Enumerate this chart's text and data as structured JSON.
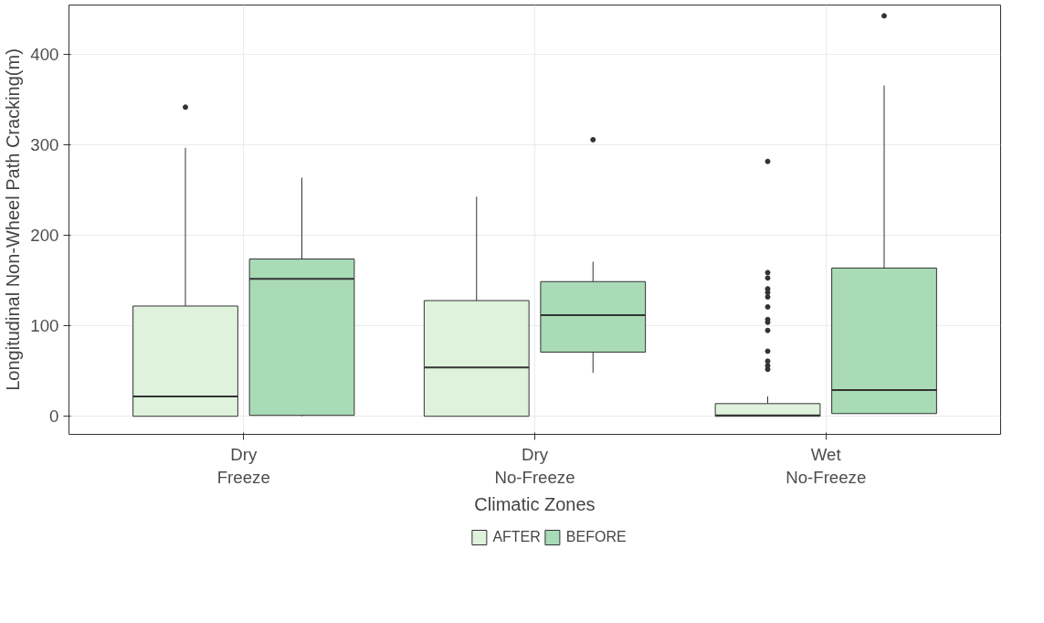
{
  "chart_data": {
    "type": "box",
    "xlabel": "Climatic Zones",
    "ylabel": "Longitudinal Non-Wheel Path Cracking(m)",
    "categories": [
      "Dry\nFreeze",
      "Dry\nNo-Freeze",
      "Wet\nNo-Freeze"
    ],
    "ylim": [
      -20,
      455
    ],
    "yticks": [
      0,
      100,
      200,
      300,
      400
    ],
    "grid": true,
    "legend": "bottom",
    "series": [
      {
        "name": "AFTER",
        "color": "#dff2dc",
        "boxes": [
          {
            "low": 0,
            "q1": 0,
            "median": 22,
            "q3": 122,
            "high": 297,
            "outliers": [
              342
            ]
          },
          {
            "low": 0,
            "q1": 0,
            "median": 54,
            "q3": 128,
            "high": 243
          },
          {
            "low": 0,
            "q1": 0,
            "median": 1,
            "q3": 14,
            "high": 22,
            "outliers": [
              282,
              159,
              153,
              141,
              137,
              132,
              121,
              107,
              104,
              95,
              72,
              61,
              56,
              52
            ]
          }
        ]
      },
      {
        "name": "BEFORE",
        "color": "#a8dbb6",
        "boxes": [
          {
            "low": 0,
            "q1": 1,
            "median": 152,
            "q3": 174,
            "high": 264
          },
          {
            "low": 48,
            "q1": 71,
            "median": 112,
            "q3": 149,
            "high": 171,
            "outliers": [
              306
            ]
          },
          {
            "low": 3,
            "q1": 3,
            "median": 29,
            "q3": 164,
            "high": 366,
            "outliers": [
              443
            ]
          }
        ]
      }
    ]
  }
}
